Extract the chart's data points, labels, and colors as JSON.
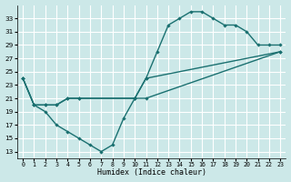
{
  "xlabel": "Humidex (Indice chaleur)",
  "bg_color": "#cce8e8",
  "grid_color": "#ffffff",
  "line_color": "#1a7070",
  "xlim": [
    -0.5,
    23.5
  ],
  "ylim": [
    12,
    35
  ],
  "xticks": [
    0,
    1,
    2,
    3,
    4,
    5,
    6,
    7,
    8,
    9,
    10,
    11,
    12,
    13,
    14,
    15,
    16,
    17,
    18,
    19,
    20,
    21,
    22,
    23
  ],
  "yticks": [
    13,
    15,
    17,
    19,
    21,
    23,
    25,
    27,
    29,
    31,
    33
  ],
  "line1_x": [
    0,
    1,
    2,
    3,
    4,
    5,
    10,
    11,
    23
  ],
  "line1_y": [
    24,
    20,
    20,
    20,
    21,
    21,
    21,
    21,
    28
  ],
  "line2_x": [
    0,
    1,
    2,
    3,
    4,
    5,
    6,
    7,
    8,
    9,
    10,
    11,
    23
  ],
  "line2_y": [
    24,
    20,
    19,
    17,
    16,
    15,
    14,
    13,
    14,
    18,
    21,
    24,
    28
  ],
  "line3_x": [
    0,
    1,
    2,
    3,
    4,
    5,
    10,
    11,
    12,
    13,
    14,
    15,
    16,
    17,
    18,
    19,
    20,
    21,
    22,
    23
  ],
  "line3_y": [
    24,
    20,
    20,
    20,
    21,
    21,
    21,
    24,
    28,
    32,
    33,
    34,
    34,
    33,
    32,
    32,
    31,
    29,
    29,
    29
  ]
}
